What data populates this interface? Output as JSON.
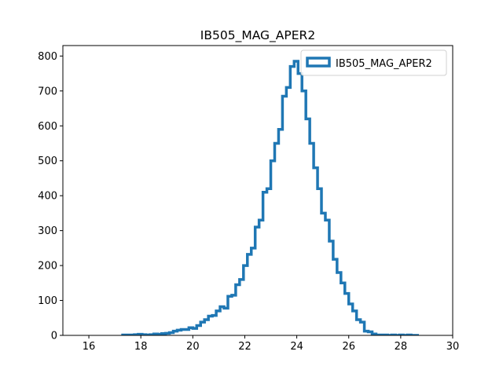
{
  "chart_data": {
    "type": "histogram",
    "title": "IB505_MAG_APER2",
    "xlabel": "",
    "ylabel": "",
    "xlim": [
      15,
      30
    ],
    "ylim": [
      0,
      830
    ],
    "xticks": [
      16,
      18,
      20,
      22,
      24,
      26,
      28,
      30
    ],
    "yticks": [
      0,
      100,
      200,
      300,
      400,
      500,
      600,
      700,
      800
    ],
    "grid": false,
    "legend": {
      "position": "top-right",
      "entries": [
        "IB505_MAG_APER2"
      ]
    },
    "series": [
      {
        "name": "IB505_MAG_APER2",
        "color": "#1f77b4",
        "histtype": "step",
        "bin_edges": [
          17.3,
          17.45,
          17.6,
          17.75,
          17.9,
          18.05,
          18.2,
          18.35,
          18.5,
          18.65,
          18.8,
          18.95,
          19.1,
          19.25,
          19.4,
          19.55,
          19.7,
          19.85,
          20.0,
          20.15,
          20.3,
          20.45,
          20.6,
          20.75,
          20.9,
          21.05,
          21.2,
          21.35,
          21.5,
          21.65,
          21.8,
          21.95,
          22.1,
          22.25,
          22.4,
          22.55,
          22.7,
          22.85,
          23.0,
          23.15,
          23.3,
          23.45,
          23.6,
          23.75,
          23.9,
          24.05,
          24.2,
          24.35,
          24.5,
          24.65,
          24.8,
          24.95,
          25.1,
          25.25,
          25.4,
          25.55,
          25.7,
          25.85,
          26.0,
          26.15,
          26.3,
          26.45,
          26.6,
          26.75,
          26.9,
          27.05,
          27.2,
          27.35,
          27.5,
          27.65,
          27.8,
          27.95,
          28.1,
          28.25,
          28.4,
          28.55,
          28.7
        ],
        "counts": [
          1,
          1,
          1,
          2,
          3,
          2,
          1,
          2,
          4,
          3,
          5,
          6,
          8,
          12,
          15,
          17,
          17,
          22,
          20,
          28,
          38,
          45,
          55,
          57,
          70,
          82,
          78,
          112,
          115,
          145,
          160,
          200,
          232,
          250,
          310,
          330,
          410,
          420,
          500,
          550,
          590,
          685,
          710,
          770,
          785,
          750,
          700,
          620,
          550,
          480,
          420,
          350,
          330,
          270,
          218,
          180,
          150,
          120,
          90,
          70,
          45,
          38,
          12,
          10,
          4,
          1,
          1,
          1,
          0,
          1,
          0,
          1,
          0,
          1,
          0,
          0
        ]
      }
    ]
  }
}
